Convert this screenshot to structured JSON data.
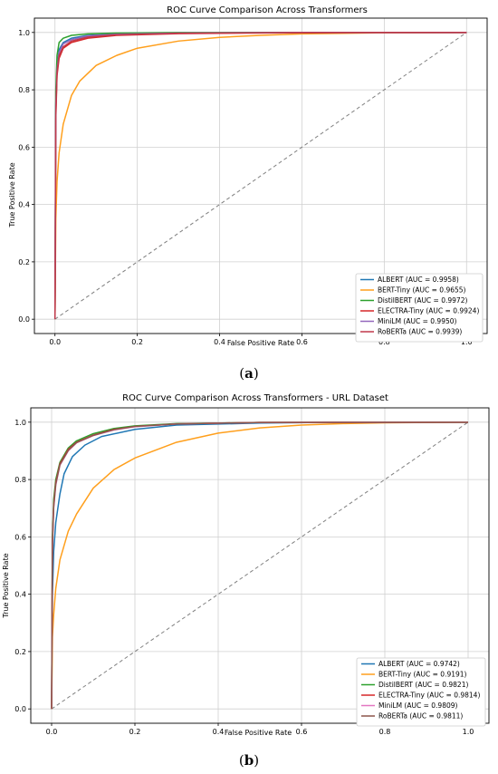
{
  "figure": {
    "caption_a": "a",
    "caption_b": "b"
  },
  "chart_data": [
    {
      "type": "line",
      "title": "ROC Curve Comparison Across Transformers",
      "xlabel": "False Positive Rate",
      "ylabel": "True Positive Rate",
      "xlim": [
        -0.05,
        1.05
      ],
      "ylim": [
        -0.05,
        1.05
      ],
      "xticks": [
        "0.0",
        "0.2",
        "0.4",
        "0.6",
        "0.8",
        "1.0"
      ],
      "yticks": [
        "0.0",
        "0.2",
        "0.4",
        "0.6",
        "0.8",
        "1.0"
      ],
      "grid": true,
      "legend_position": "lower-right",
      "diagonal": {
        "x": [
          0,
          1
        ],
        "y": [
          0,
          1
        ],
        "style": "dashed",
        "color": "#808080"
      },
      "series": [
        {
          "name": "ALBERT (AUC = 0.9958)",
          "color": "#1f77b4",
          "x": [
            0,
            0.002,
            0.005,
            0.01,
            0.02,
            0.04,
            0.08,
            0.15,
            0.3,
            0.6,
            1.0
          ],
          "y": [
            0,
            0.75,
            0.88,
            0.94,
            0.965,
            0.98,
            0.99,
            0.995,
            0.998,
            1.0,
            1.0
          ]
        },
        {
          "name": "BERT-Tiny (AUC = 0.9655)",
          "color": "#ff9f1c",
          "x": [
            0,
            0.002,
            0.005,
            0.01,
            0.02,
            0.04,
            0.06,
            0.1,
            0.15,
            0.2,
            0.3,
            0.4,
            0.5,
            0.6,
            0.8,
            1.0
          ],
          "y": [
            0,
            0.35,
            0.48,
            0.58,
            0.68,
            0.78,
            0.83,
            0.885,
            0.92,
            0.945,
            0.97,
            0.983,
            0.99,
            0.995,
            0.999,
            1.0
          ]
        },
        {
          "name": "DistilBERT (AUC = 0.9972)",
          "color": "#2ca02c",
          "x": [
            0,
            0.002,
            0.005,
            0.01,
            0.02,
            0.04,
            0.08,
            0.15,
            0.3,
            1.0
          ],
          "y": [
            0,
            0.8,
            0.92,
            0.965,
            0.98,
            0.99,
            0.995,
            0.998,
            1.0,
            1.0
          ]
        },
        {
          "name": "ELECTRA-Tiny (AUC = 0.9924)",
          "color": "#d62728",
          "x": [
            0,
            0.002,
            0.005,
            0.01,
            0.02,
            0.04,
            0.08,
            0.15,
            0.3,
            0.6,
            1.0
          ],
          "y": [
            0,
            0.7,
            0.85,
            0.91,
            0.945,
            0.965,
            0.98,
            0.99,
            0.996,
            0.999,
            1.0
          ]
        },
        {
          "name": "MiniLM (AUC = 0.9950)",
          "color": "#9467bd",
          "x": [
            0,
            0.002,
            0.005,
            0.01,
            0.02,
            0.04,
            0.08,
            0.15,
            0.3,
            0.6,
            1.0
          ],
          "y": [
            0,
            0.74,
            0.87,
            0.93,
            0.96,
            0.975,
            0.988,
            0.994,
            0.998,
            1.0,
            1.0
          ]
        },
        {
          "name": "RoBERTa (AUC = 0.9939)",
          "color": "#c0394b",
          "x": [
            0,
            0.002,
            0.005,
            0.01,
            0.02,
            0.04,
            0.08,
            0.15,
            0.3,
            0.6,
            1.0
          ],
          "y": [
            0,
            0.72,
            0.86,
            0.92,
            0.95,
            0.97,
            0.984,
            0.992,
            0.997,
            1.0,
            1.0
          ]
        }
      ]
    },
    {
      "type": "line",
      "title": "ROC Curve Comparison Across Transformers - URL Dataset",
      "xlabel": "False Positive Rate",
      "ylabel": "True Positive Rate",
      "xlim": [
        -0.05,
        1.05
      ],
      "ylim": [
        -0.05,
        1.05
      ],
      "xticks": [
        "0.0",
        "0.2",
        "0.4",
        "0.6",
        "0.8",
        "1.0"
      ],
      "yticks": [
        "0.0",
        "0.2",
        "0.4",
        "0.6",
        "0.8",
        "1.0"
      ],
      "grid": true,
      "legend_position": "lower-right",
      "diagonal": {
        "x": [
          0,
          1
        ],
        "y": [
          0,
          1
        ],
        "style": "dashed",
        "color": "#808080"
      },
      "series": [
        {
          "name": "ALBERT (AUC = 0.9742)",
          "color": "#1f77b4",
          "x": [
            0,
            0.002,
            0.005,
            0.01,
            0.02,
            0.03,
            0.05,
            0.08,
            0.12,
            0.2,
            0.3,
            0.5,
            0.7,
            1.0
          ],
          "y": [
            0,
            0.4,
            0.55,
            0.65,
            0.75,
            0.82,
            0.88,
            0.92,
            0.95,
            0.975,
            0.99,
            0.997,
            1.0,
            1.0
          ]
        },
        {
          "name": "BERT-Tiny (AUC = 0.9191)",
          "color": "#ff9f1c",
          "x": [
            0,
            0.002,
            0.005,
            0.01,
            0.02,
            0.04,
            0.06,
            0.1,
            0.15,
            0.2,
            0.3,
            0.4,
            0.5,
            0.6,
            0.7,
            0.8,
            1.0
          ],
          "y": [
            0,
            0.25,
            0.33,
            0.42,
            0.52,
            0.62,
            0.68,
            0.77,
            0.835,
            0.875,
            0.93,
            0.962,
            0.98,
            0.99,
            0.995,
            0.998,
            1.0
          ]
        },
        {
          "name": "DistilBERT (AUC = 0.9821)",
          "color": "#2ca02c",
          "x": [
            0,
            0.002,
            0.005,
            0.01,
            0.02,
            0.04,
            0.06,
            0.1,
            0.15,
            0.2,
            0.3,
            0.5,
            1.0
          ],
          "y": [
            0,
            0.6,
            0.73,
            0.8,
            0.86,
            0.91,
            0.935,
            0.96,
            0.978,
            0.987,
            0.995,
            0.999,
            1.0
          ]
        },
        {
          "name": "ELECTRA-Tiny (AUC = 0.9814)",
          "color": "#d62728",
          "x": [
            0,
            0.002,
            0.005,
            0.01,
            0.02,
            0.04,
            0.06,
            0.1,
            0.15,
            0.2,
            0.3,
            0.5,
            1.0
          ],
          "y": [
            0,
            0.58,
            0.71,
            0.79,
            0.855,
            0.905,
            0.93,
            0.955,
            0.975,
            0.985,
            0.994,
            0.999,
            1.0
          ]
        },
        {
          "name": "MiniLM (AUC = 0.9809)",
          "color": "#e377c2",
          "x": [
            0,
            0.002,
            0.005,
            0.01,
            0.02,
            0.04,
            0.06,
            0.1,
            0.15,
            0.2,
            0.3,
            0.5,
            1.0
          ],
          "y": [
            0,
            0.57,
            0.7,
            0.78,
            0.85,
            0.9,
            0.928,
            0.953,
            0.973,
            0.984,
            0.994,
            0.999,
            1.0
          ]
        },
        {
          "name": "RoBERTa (AUC = 0.9811)",
          "color": "#8c564b",
          "x": [
            0,
            0.002,
            0.005,
            0.01,
            0.02,
            0.04,
            0.06,
            0.1,
            0.15,
            0.2,
            0.3,
            0.5,
            1.0
          ],
          "y": [
            0,
            0.58,
            0.705,
            0.785,
            0.852,
            0.902,
            0.929,
            0.954,
            0.974,
            0.985,
            0.994,
            0.999,
            1.0
          ]
        }
      ]
    }
  ]
}
